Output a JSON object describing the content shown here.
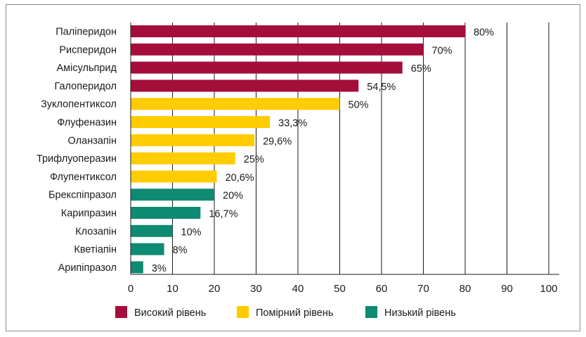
{
  "chart_data": {
    "type": "bar",
    "orientation": "horizontal",
    "categories": [
      "Паліперидон",
      "Рисперидон",
      "Амісульприд",
      "Галоперидол",
      "Зуклопентиксол",
      "Флуфеназин",
      "Оланзапін",
      "Трифлуоперазин",
      "Флупентиксол",
      "Брекспіпразол",
      "Карипразин",
      "Клозапін",
      "Кветіапін",
      "Арипіпразол"
    ],
    "values": [
      80,
      70,
      65,
      54.5,
      50,
      33.3,
      29.6,
      25,
      20.6,
      20,
      16.7,
      10,
      8,
      3
    ],
    "value_labels": [
      "80%",
      "70%",
      "65%",
      "54,5%",
      "50%",
      "33,3%",
      "29,6%",
      "25%",
      "20,6%",
      "20%",
      "16,7%",
      "10%",
      "8%",
      "3%"
    ],
    "groups": [
      "high",
      "high",
      "high",
      "high",
      "moderate",
      "moderate",
      "moderate",
      "moderate",
      "moderate",
      "low",
      "low",
      "low",
      "low",
      "low"
    ],
    "xlim": [
      0,
      100
    ],
    "x_ticks": [
      "0",
      "10",
      "20",
      "30",
      "40",
      "50",
      "60",
      "70",
      "80",
      "90",
      "100"
    ],
    "grid": "vertical",
    "legend_position": "bottom",
    "legend": [
      {
        "key": "high",
        "label": "Високий рівень",
        "color": "#a50d3a"
      },
      {
        "key": "moderate",
        "label": "Помірний рівень",
        "color": "#ffcc00"
      },
      {
        "key": "low",
        "label": "Низький рівень",
        "color": "#0f8a73"
      }
    ]
  }
}
